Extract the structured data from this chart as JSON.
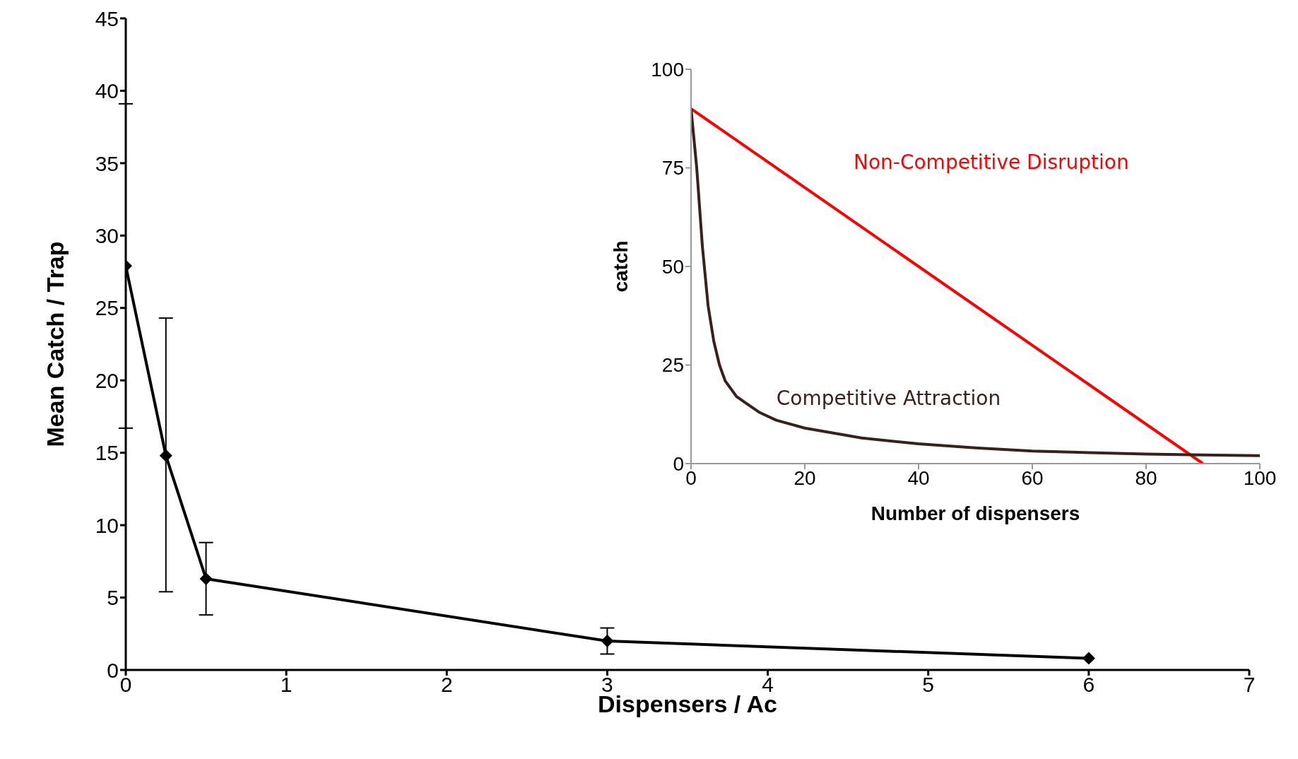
{
  "chart_data": [
    {
      "type": "line",
      "xlabel": "Dispensers / Ac",
      "ylabel": "Mean Catch / Trap",
      "x": [
        0,
        0.25,
        0.5,
        3,
        6
      ],
      "series": [
        {
          "color": "#000000",
          "values": [
            27.9,
            14.8,
            6.3,
            2.0,
            0.8
          ],
          "errors": [
            [
              16.7,
              39.1
            ],
            [
              5.4,
              24.3
            ],
            [
              3.8,
              8.8
            ],
            [
              1.1,
              2.9
            ],
            null
          ]
        }
      ],
      "xlim": [
        0,
        7
      ],
      "xticks": [
        0,
        1,
        2,
        3,
        4,
        5,
        6,
        7
      ],
      "ylim": [
        0,
        45
      ],
      "yticks": [
        0,
        5,
        10,
        15,
        20,
        25,
        30,
        35,
        40,
        45
      ],
      "marker": "diamond",
      "grid": false,
      "legend": false
    },
    {
      "type": "line",
      "xlabel": "Number of dispensers",
      "ylabel": "catch",
      "series": [
        {
          "name": "Non-Competitive Disruption",
          "color": "#ff0000",
          "x": [
            0,
            90
          ],
          "values": [
            90,
            0
          ]
        },
        {
          "name": "Competitive Attraction",
          "color": "#3a1f1a",
          "x": [
            0,
            1,
            2,
            3,
            4,
            5,
            6,
            8,
            10,
            12,
            15,
            20,
            30,
            40,
            50,
            60,
            70,
            80,
            90,
            100
          ],
          "values": [
            90,
            75,
            55,
            40,
            31,
            25,
            21,
            17,
            15,
            13,
            11,
            9,
            6.5,
            5,
            4,
            3.2,
            2.8,
            2.4,
            2.2,
            2.0
          ]
        }
      ],
      "xlim": [
        0,
        100
      ],
      "xticks": [
        0,
        20,
        40,
        60,
        80,
        100
      ],
      "ylim": [
        0,
        100
      ],
      "yticks": [
        0,
        25,
        50,
        75,
        100
      ],
      "marker": "none",
      "grid": false,
      "legend": false
    }
  ]
}
